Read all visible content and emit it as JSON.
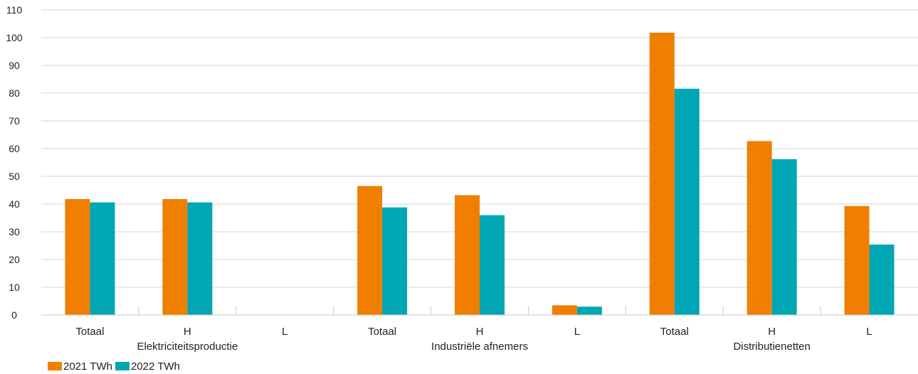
{
  "chart_data": {
    "type": "bar",
    "ylim": [
      0,
      110
    ],
    "yticks": [
      0,
      10,
      20,
      30,
      40,
      50,
      60,
      70,
      80,
      90,
      100,
      110
    ],
    "grid": true,
    "legend_position": "bottom-left",
    "categories": [
      "Totaal",
      "H",
      "L",
      "Totaal",
      "H",
      "L",
      "Totaal",
      "H",
      "L"
    ],
    "groups": [
      {
        "label": "Elektriciteitsproductie",
        "span": [
          0,
          2
        ]
      },
      {
        "label": "Industriële afnemers",
        "span": [
          3,
          5
        ]
      },
      {
        "label": "Distributienetten",
        "span": [
          6,
          8
        ]
      }
    ],
    "series": [
      {
        "name": "2021 TWh",
        "color": "#f07f00",
        "values": [
          41.8,
          41.8,
          0.1,
          46.5,
          43.2,
          3.5,
          101.8,
          62.7,
          39.3
        ]
      },
      {
        "name": "2022 TWh",
        "color": "#00a6b4",
        "values": [
          40.6,
          40.6,
          0.1,
          38.8,
          36.0,
          3.0,
          81.6,
          56.2,
          25.4
        ]
      }
    ]
  }
}
